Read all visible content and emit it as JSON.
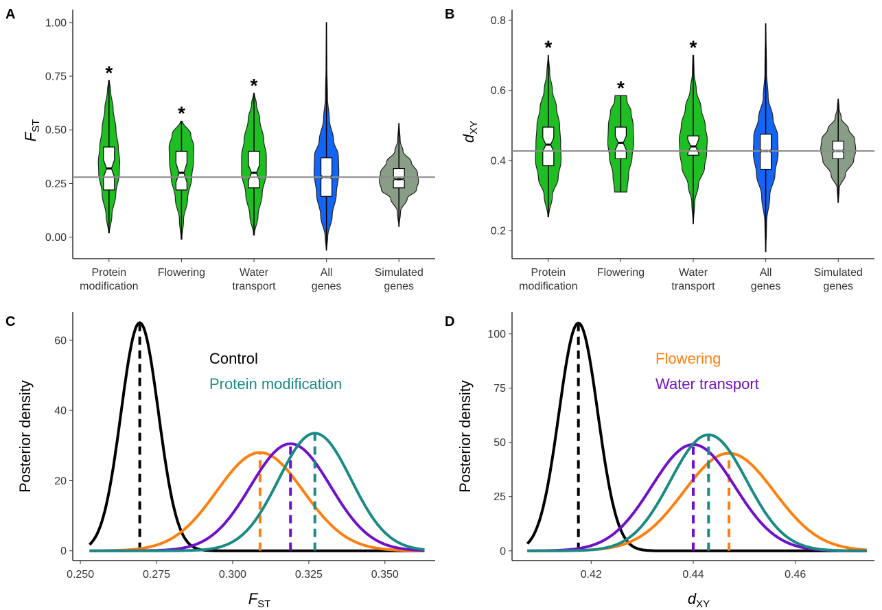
{
  "chart_data": [
    {
      "panel": "A",
      "type": "violin",
      "ylabel_main": "F",
      "ylabel_sub": "ST",
      "ylim": [
        -0.1,
        1.06
      ],
      "yticks": [
        0.0,
        0.25,
        0.5,
        0.75,
        1.0
      ],
      "ytick_labels": [
        "0.00",
        "0.25",
        "0.50",
        "0.75",
        "1.00"
      ],
      "categories": [
        [
          "Protein",
          "modification"
        ],
        [
          "Flowering"
        ],
        [
          "Water",
          "transport"
        ],
        [
          "All",
          "genes"
        ],
        [
          "Simulated",
          "genes"
        ]
      ],
      "reference_line": 0.28,
      "violins": [
        {
          "color": "#1fbe23",
          "min": 0.02,
          "max": 0.73,
          "q1": 0.22,
          "median": 0.32,
          "q3": 0.42,
          "notch": 0.04,
          "star": true,
          "shape": [
            [
              0.02,
              0.02
            ],
            [
              0.1,
              0.14
            ],
            [
              0.2,
              0.33
            ],
            [
              0.3,
              0.5
            ],
            [
              0.35,
              0.52
            ],
            [
              0.42,
              0.45
            ],
            [
              0.5,
              0.34
            ],
            [
              0.6,
              0.2
            ],
            [
              0.68,
              0.08
            ],
            [
              0.73,
              0.02
            ]
          ]
        },
        {
          "color": "#1fbe23",
          "min": -0.01,
          "max": 0.54,
          "q1": 0.22,
          "median": 0.3,
          "q3": 0.4,
          "notch": 0.045,
          "star": true,
          "shape": [
            [
              -0.01,
              0.02
            ],
            [
              0.08,
              0.1
            ],
            [
              0.18,
              0.3
            ],
            [
              0.28,
              0.5
            ],
            [
              0.35,
              0.58
            ],
            [
              0.42,
              0.6
            ],
            [
              0.48,
              0.45
            ],
            [
              0.54,
              0.05
            ]
          ]
        },
        {
          "color": "#1fbe23",
          "min": 0.01,
          "max": 0.67,
          "q1": 0.23,
          "median": 0.3,
          "q3": 0.4,
          "notch": 0.035,
          "star": true,
          "shape": [
            [
              0.01,
              0.02
            ],
            [
              0.1,
              0.2
            ],
            [
              0.2,
              0.4
            ],
            [
              0.3,
              0.6
            ],
            [
              0.38,
              0.6
            ],
            [
              0.45,
              0.48
            ],
            [
              0.55,
              0.28
            ],
            [
              0.62,
              0.12
            ],
            [
              0.67,
              0.02
            ]
          ]
        },
        {
          "color": "#1464f5",
          "min": -0.06,
          "max": 1.0,
          "q1": 0.19,
          "median": 0.28,
          "q3": 0.37,
          "notch": 0.008,
          "star": false,
          "shape": [
            [
              -0.06,
              0.01
            ],
            [
              0.0,
              0.06
            ],
            [
              0.1,
              0.28
            ],
            [
              0.2,
              0.48
            ],
            [
              0.3,
              0.6
            ],
            [
              0.38,
              0.58
            ],
            [
              0.45,
              0.35
            ],
            [
              0.55,
              0.14
            ],
            [
              0.65,
              0.05
            ],
            [
              0.8,
              0.02
            ],
            [
              1.0,
              0.01
            ]
          ]
        },
        {
          "color": "#899e87",
          "min": 0.05,
          "max": 0.53,
          "q1": 0.23,
          "median": 0.27,
          "q3": 0.32,
          "notch": 0.005,
          "star": false,
          "shape": [
            [
              0.05,
              0.01
            ],
            [
              0.12,
              0.08
            ],
            [
              0.18,
              0.4
            ],
            [
              0.22,
              0.85
            ],
            [
              0.26,
              0.95
            ],
            [
              0.3,
              0.9
            ],
            [
              0.35,
              0.6
            ],
            [
              0.4,
              0.2
            ],
            [
              0.45,
              0.06
            ],
            [
              0.53,
              0.01
            ]
          ]
        }
      ]
    },
    {
      "panel": "B",
      "type": "violin",
      "ylabel_main": "d",
      "ylabel_sub": "XY",
      "ylim": [
        0.12,
        0.83
      ],
      "yticks": [
        0.2,
        0.4,
        0.6,
        0.8
      ],
      "ytick_labels": [
        "0.2",
        "0.4",
        "0.6",
        "0.8"
      ],
      "categories": [
        [
          "Protein",
          "modification"
        ],
        [
          "Flowering"
        ],
        [
          "Water",
          "transport"
        ],
        [
          "All",
          "genes"
        ],
        [
          "Simulated",
          "genes"
        ]
      ],
      "reference_line": 0.427,
      "violins": [
        {
          "color": "#1fbe23",
          "min": 0.24,
          "max": 0.7,
          "q1": 0.385,
          "median": 0.445,
          "q3": 0.495,
          "notch": 0.02,
          "star": true,
          "shape": [
            [
              0.24,
              0.02
            ],
            [
              0.3,
              0.2
            ],
            [
              0.35,
              0.48
            ],
            [
              0.4,
              0.62
            ],
            [
              0.45,
              0.6
            ],
            [
              0.5,
              0.55
            ],
            [
              0.55,
              0.4
            ],
            [
              0.6,
              0.2
            ],
            [
              0.65,
              0.07
            ],
            [
              0.7,
              0.01
            ]
          ]
        },
        {
          "color": "#1fbe23",
          "min": 0.31,
          "max": 0.585,
          "q1": 0.405,
          "median": 0.45,
          "q3": 0.495,
          "notch": 0.02,
          "star": true,
          "shape": [
            [
              0.31,
              0.3
            ],
            [
              0.36,
              0.38
            ],
            [
              0.41,
              0.55
            ],
            [
              0.45,
              0.63
            ],
            [
              0.5,
              0.6
            ],
            [
              0.54,
              0.5
            ],
            [
              0.57,
              0.3
            ],
            [
              0.585,
              0.28
            ]
          ]
        },
        {
          "color": "#1fbe23",
          "min": 0.22,
          "max": 0.7,
          "q1": 0.415,
          "median": 0.44,
          "q3": 0.47,
          "notch": 0.02,
          "star": true,
          "shape": [
            [
              0.22,
              0.01
            ],
            [
              0.28,
              0.07
            ],
            [
              0.33,
              0.25
            ],
            [
              0.38,
              0.55
            ],
            [
              0.42,
              0.65
            ],
            [
              0.46,
              0.68
            ],
            [
              0.5,
              0.58
            ],
            [
              0.55,
              0.38
            ],
            [
              0.6,
              0.15
            ],
            [
              0.65,
              0.04
            ],
            [
              0.7,
              0.02
            ]
          ]
        },
        {
          "color": "#1464f5",
          "min": 0.14,
          "max": 0.79,
          "q1": 0.375,
          "median": 0.427,
          "q3": 0.475,
          "notch": 0.004,
          "star": false,
          "shape": [
            [
              0.14,
              0.01
            ],
            [
              0.22,
              0.04
            ],
            [
              0.3,
              0.2
            ],
            [
              0.36,
              0.45
            ],
            [
              0.42,
              0.6
            ],
            [
              0.47,
              0.58
            ],
            [
              0.52,
              0.35
            ],
            [
              0.58,
              0.12
            ],
            [
              0.65,
              0.04
            ],
            [
              0.79,
              0.01
            ]
          ]
        },
        {
          "color": "#899e87",
          "min": 0.28,
          "max": 0.575,
          "q1": 0.405,
          "median": 0.427,
          "q3": 0.455,
          "notch": 0.004,
          "star": false,
          "shape": [
            [
              0.28,
              0.01
            ],
            [
              0.32,
              0.05
            ],
            [
              0.36,
              0.35
            ],
            [
              0.4,
              0.75
            ],
            [
              0.43,
              0.85
            ],
            [
              0.46,
              0.8
            ],
            [
              0.49,
              0.5
            ],
            [
              0.52,
              0.15
            ],
            [
              0.55,
              0.04
            ],
            [
              0.575,
              0.01
            ]
          ]
        }
      ]
    },
    {
      "panel": "C",
      "type": "line",
      "xlabel_main": "F",
      "xlabel_sub": "ST",
      "ylabel": "Posterior density",
      "xlim": [
        0.2475,
        0.3665
      ],
      "ylim": [
        -2.8,
        68
      ],
      "xticks": [
        0.25,
        0.275,
        0.3,
        0.325,
        0.35
      ],
      "xtick_labels": [
        "0.250",
        "0.275",
        "0.300",
        "0.325",
        "0.350"
      ],
      "yticks": [
        0,
        20,
        40,
        60
      ],
      "ytick_labels": [
        "0",
        "20",
        "40",
        "60"
      ],
      "legend_entries": [
        "Control",
        "Protein modification"
      ],
      "series": [
        {
          "color": "#000000",
          "mean": 0.2695,
          "peak": 65,
          "xmin": 0.253,
          "xmax": 0.363
        },
        {
          "color": "#ff7f0e",
          "mean": 0.309,
          "peak": 28,
          "xmin": 0.253,
          "xmax": 0.363
        },
        {
          "color": "#7010c8",
          "mean": 0.319,
          "peak": 30.5,
          "xmin": 0.253,
          "xmax": 0.363
        },
        {
          "color": "#1a8a86",
          "mean": 0.327,
          "peak": 33.5,
          "xmin": 0.253,
          "xmax": 0.363
        }
      ]
    },
    {
      "panel": "D",
      "type": "line",
      "xlabel_main": "d",
      "xlabel_sub": "XY",
      "ylabel": "Posterior density",
      "xlim": [
        0.4045,
        0.4755
      ],
      "ylim": [
        -4.5,
        110
      ],
      "xticks": [
        0.42,
        0.44,
        0.46
      ],
      "xtick_labels": [
        "0.42",
        "0.44",
        "0.46"
      ],
      "yticks": [
        0,
        25,
        50,
        75,
        100
      ],
      "ytick_labels": [
        "0",
        "25",
        "50",
        "75",
        "100"
      ],
      "legend_entries": [
        "Flowering",
        "Water transport"
      ],
      "series": [
        {
          "color": "#000000",
          "mean": 0.4175,
          "peak": 105,
          "xmin": 0.4075,
          "xmax": 0.474
        },
        {
          "color": "#ff7f0e",
          "mean": 0.447,
          "peak": 45,
          "xmin": 0.4075,
          "xmax": 0.474
        },
        {
          "color": "#7010c8",
          "mean": 0.44,
          "peak": 49,
          "xmin": 0.4075,
          "xmax": 0.474
        },
        {
          "color": "#1a8a86",
          "mean": 0.443,
          "peak": 53.5,
          "xmin": 0.4075,
          "xmax": 0.474
        }
      ]
    }
  ],
  "legend_colors": {
    "Control": "#000000",
    "Protein modification": "#1a8a86",
    "Flowering": "#ff7f0e",
    "Water transport": "#7010c8"
  },
  "star_text": "*"
}
